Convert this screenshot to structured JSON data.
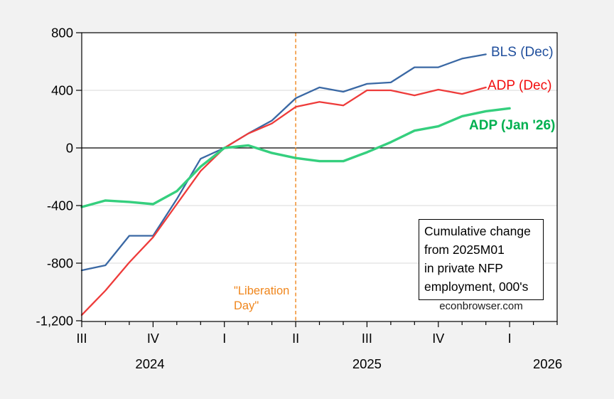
{
  "background": "#f2f2f2",
  "chart_data": {
    "type": "line",
    "x_monthly_labels": [
      "2024-07",
      "2024-08",
      "2024-09",
      "2024-10",
      "2024-11",
      "2024-12",
      "2025-01",
      "2025-02",
      "2025-03",
      "2025-04",
      "2025-05",
      "2025-06",
      "2025-07",
      "2025-08",
      "2025-09",
      "2025-10",
      "2025-11",
      "2025-12",
      "2026-01"
    ],
    "series": [
      {
        "name": "BLS (Dec)",
        "color": "#3a68a4",
        "label_color": "#1f4e9c",
        "width": 2.3,
        "values": [
          -850,
          -815,
          -610,
          -610,
          -355,
          -75,
          0,
          100,
          190,
          345,
          420,
          390,
          445,
          455,
          560,
          560,
          620,
          650,
          null
        ]
      },
      {
        "name": "ADP (Dec)",
        "color": "#ee3b3a",
        "label_color": "#f20d0d",
        "width": 2.3,
        "values": [
          -1160,
          -990,
          -795,
          -620,
          -390,
          -160,
          0,
          100,
          170,
          285,
          320,
          295,
          400,
          400,
          365,
          405,
          375,
          420,
          null
        ]
      },
      {
        "name": "ADP (Jan '26)",
        "color": "#35cf7e",
        "label_color": "#00b050",
        "width": 3.4,
        "values": [
          -410,
          -365,
          -375,
          -390,
          -300,
          -130,
          0,
          18,
          -35,
          -70,
          -92,
          -92,
          -30,
          40,
          120,
          150,
          220,
          255,
          275
        ]
      }
    ],
    "ylim": [
      -1200,
      800
    ],
    "ytick_interval": 400,
    "ytick_labels": [
      "800",
      "400",
      "0",
      "-400",
      "-800",
      "-1,200"
    ],
    "grid_values": [
      400,
      -400,
      -800
    ],
    "zero_line_value": 0,
    "months_span": 20,
    "x_quarter_ticks": [
      {
        "index": 0,
        "label": "III"
      },
      {
        "index": 3,
        "label": "IV"
      },
      {
        "index": 6,
        "label": "I"
      },
      {
        "index": 9,
        "label": "II"
      },
      {
        "index": 12,
        "label": "III"
      },
      {
        "index": 15,
        "label": "IV"
      },
      {
        "index": 18,
        "label": "I"
      }
    ],
    "year_labels": [
      {
        "label": "2024",
        "index": 2.87
      },
      {
        "label": "2025",
        "index": 12.0
      },
      {
        "label": "2026",
        "index": 19.6
      }
    ],
    "legend_position": "right-inline"
  },
  "event_line": {
    "month_index": 9,
    "color": "#f0861c",
    "label_line1": "\"Liberation",
    "label_line2": "Day\""
  },
  "annotation_box": {
    "lines": [
      "Cumulative change",
      "from 2025M01",
      "in private NFP",
      "employment, 000's"
    ]
  },
  "watermark": "econbrowser.com"
}
